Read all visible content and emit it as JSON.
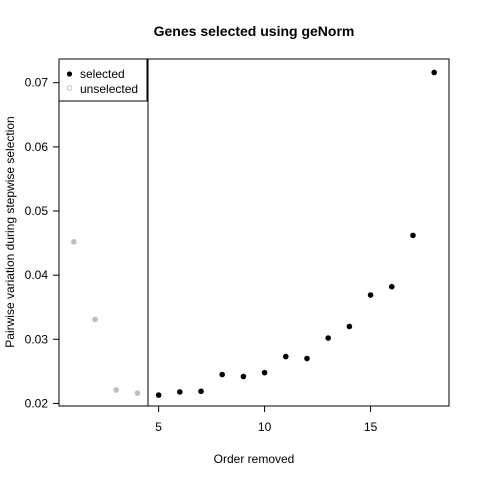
{
  "chart_data": {
    "type": "scatter",
    "title": "Genes selected using geNorm",
    "xlabel": "Order removed",
    "ylabel": "Pairwise variation during stepwise selection",
    "xlim": [
      0.3,
      18.7
    ],
    "ylim": [
      0.0196,
      0.0737
    ],
    "xticks": [
      5,
      10,
      15
    ],
    "yticks": [
      0.02,
      0.03,
      0.04,
      0.05,
      0.06,
      0.07
    ],
    "ytick_labels": [
      "0.02",
      "0.03",
      "0.04",
      "0.05",
      "0.06",
      "0.07"
    ],
    "cutoff_x": 4.5,
    "grid": false,
    "legend_position": "top-left",
    "series": [
      {
        "name": "unselected",
        "color": "#bebebe",
        "x": [
          1,
          2,
          3,
          4
        ],
        "y": [
          0.0452,
          0.0331,
          0.0221,
          0.0216
        ]
      },
      {
        "name": "selected",
        "color": "#000000",
        "x": [
          5,
          6,
          7,
          8,
          9,
          10,
          11,
          12,
          13,
          14,
          15,
          16,
          17,
          18
        ],
        "y": [
          0.0213,
          0.0218,
          0.0219,
          0.0245,
          0.0242,
          0.0248,
          0.0273,
          0.027,
          0.0302,
          0.032,
          0.0369,
          0.0382,
          0.0462,
          0.0716
        ]
      }
    ],
    "legend": [
      {
        "label": "selected",
        "marker": "filled",
        "color": "#000000"
      },
      {
        "label": "unselected",
        "marker": "open",
        "color": "#bebebe"
      }
    ]
  }
}
